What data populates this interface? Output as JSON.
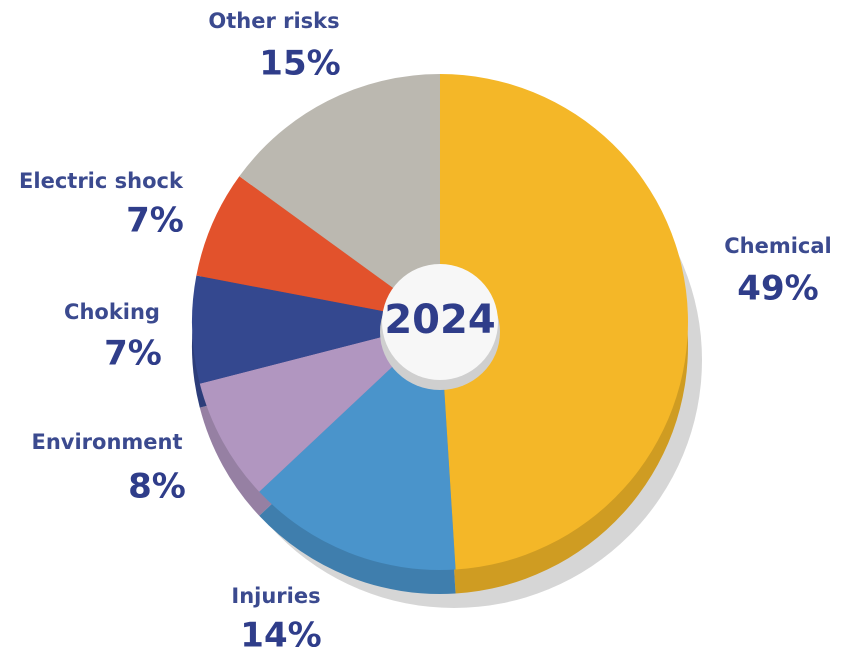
{
  "chart_data": {
    "type": "pie",
    "categories": [
      "Chemical",
      "Injuries",
      "Environment",
      "Choking",
      "Electric shock",
      "Other risks"
    ],
    "values": [
      49,
      14,
      8,
      7,
      7,
      15
    ],
    "value_labels": [
      "49%",
      "14%",
      "8%",
      "7%",
      "7%",
      "15%"
    ],
    "colors": [
      "#f4b728",
      "#4a94cb",
      "#b196c0",
      "#34488f",
      "#e2522c",
      "#bbb8b0"
    ],
    "center_label": "2024"
  }
}
